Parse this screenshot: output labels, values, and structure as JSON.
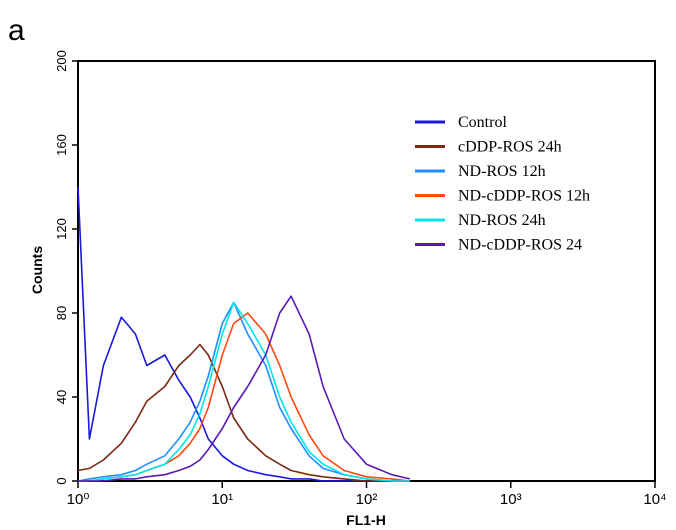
{
  "panel_label": "a",
  "chart_data": {
    "type": "line",
    "xlabel": "FL1-H",
    "ylabel": "Counts",
    "xscale": "log",
    "legend": "upper right",
    "xlim": [
      1,
      10000
    ],
    "xticks": [
      {
        "value": 1,
        "label": "10⁰"
      },
      {
        "value": 10,
        "label": "10¹"
      },
      {
        "value": 100,
        "label": "10²"
      },
      {
        "value": 1000,
        "label": "10³"
      },
      {
        "value": 10000,
        "label": "10⁴"
      }
    ],
    "ylim": [
      0,
      200
    ],
    "yticks": [
      0,
      40,
      80,
      120,
      160,
      200
    ],
    "x": [
      1,
      1.2,
      1.5,
      2,
      2.5,
      3,
      4,
      5,
      6,
      7,
      8,
      10,
      12,
      15,
      20,
      25,
      30,
      40,
      50,
      70,
      100,
      150,
      200
    ],
    "series": [
      {
        "name": "Control",
        "color": "#1a1adc",
        "values": [
          140,
          20,
          55,
          78,
          70,
          55,
          60,
          48,
          40,
          30,
          20,
          12,
          8,
          5,
          3,
          2,
          1,
          1,
          0,
          0,
          0,
          0,
          0
        ]
      },
      {
        "name": "cDDP-ROS 24h",
        "color": "#7a2a10",
        "values": [
          5,
          6,
          10,
          18,
          28,
          38,
          45,
          55,
          60,
          65,
          60,
          45,
          30,
          20,
          12,
          8,
          5,
          3,
          2,
          1,
          0,
          0,
          0
        ]
      },
      {
        "name": "ND-ROS 12h",
        "color": "#1e8fff",
        "values": [
          0,
          1,
          2,
          3,
          5,
          8,
          12,
          20,
          28,
          38,
          50,
          75,
          85,
          70,
          55,
          35,
          25,
          12,
          6,
          3,
          1,
          0,
          0
        ]
      },
      {
        "name": "ND-cDDP-ROS 12h",
        "color": "#ff4a10",
        "values": [
          0,
          0,
          1,
          2,
          3,
          5,
          8,
          12,
          18,
          25,
          35,
          60,
          75,
          80,
          70,
          55,
          40,
          22,
          12,
          5,
          2,
          1,
          0
        ]
      },
      {
        "name": "ND-ROS 24h",
        "color": "#00e5ee",
        "values": [
          0,
          0,
          1,
          2,
          3,
          5,
          8,
          15,
          22,
          32,
          45,
          70,
          85,
          75,
          60,
          40,
          28,
          14,
          8,
          3,
          1,
          0,
          0
        ]
      },
      {
        "name": "ND-cDDP-ROS 24",
        "color": "#5a1ab4",
        "values": [
          0,
          0,
          0,
          1,
          1,
          2,
          3,
          5,
          7,
          10,
          15,
          25,
          35,
          45,
          60,
          80,
          88,
          70,
          45,
          20,
          8,
          3,
          1
        ]
      }
    ]
  }
}
